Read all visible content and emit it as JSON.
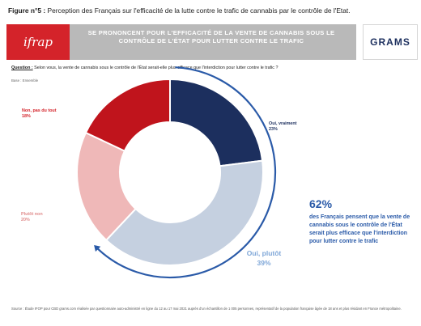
{
  "figure": {
    "title_prefix": "Figure n°5 :",
    "title_text": "Perception des Français sur l'efficacité de la lutte contre le trafic de cannabis par le contrôle de l'Etat."
  },
  "banner": {
    "logo_text": "ifrap",
    "text": "SE PRONONCENT POUR L'EFFICACITÉ DE LA VENTE DE CANNABIS SOUS LE CONTRÔLE DE L'ÉTAT POUR LUTTER CONTRE LE TRAFIC",
    "brand": "GRAMS"
  },
  "question": {
    "label": "Question :",
    "text": "Selon vous, la vente de cannabis sous le contrôle de l'État serait-elle plus efficace que l'interdiction pour lutter contre le trafic ?",
    "base": "Base : Ensemble"
  },
  "chart_data": {
    "type": "pie",
    "donut": true,
    "categories": [
      "Oui, vraiment",
      "Oui, plutôt",
      "Plutôt non",
      "Non, pas du tout"
    ],
    "values": [
      23,
      39,
      20,
      18
    ],
    "value_labels": [
      "23%",
      "39%",
      "20%",
      "18%"
    ],
    "colors": [
      "#1c2f5e",
      "#c5d0e0",
      "#efb8b8",
      "#c0141c"
    ],
    "arrow_color": "#2a5aa8",
    "callout": {
      "percent": "62%",
      "text": "des Français pensent que la vente de cannabis sous le contrôle de l'État serait plus efficace que l'interdiction pour lutter contre le trafic"
    }
  },
  "source": "Source : Étude IFOP pour CBD grams.com réalisée par questionnaire auto-administré en ligne du 12 au 17 mai 2021 auprès d'un échantillon de 1 005 personnes, représentatif de la population française âgée de 18 ans et plus résidant en France métropolitaine."
}
